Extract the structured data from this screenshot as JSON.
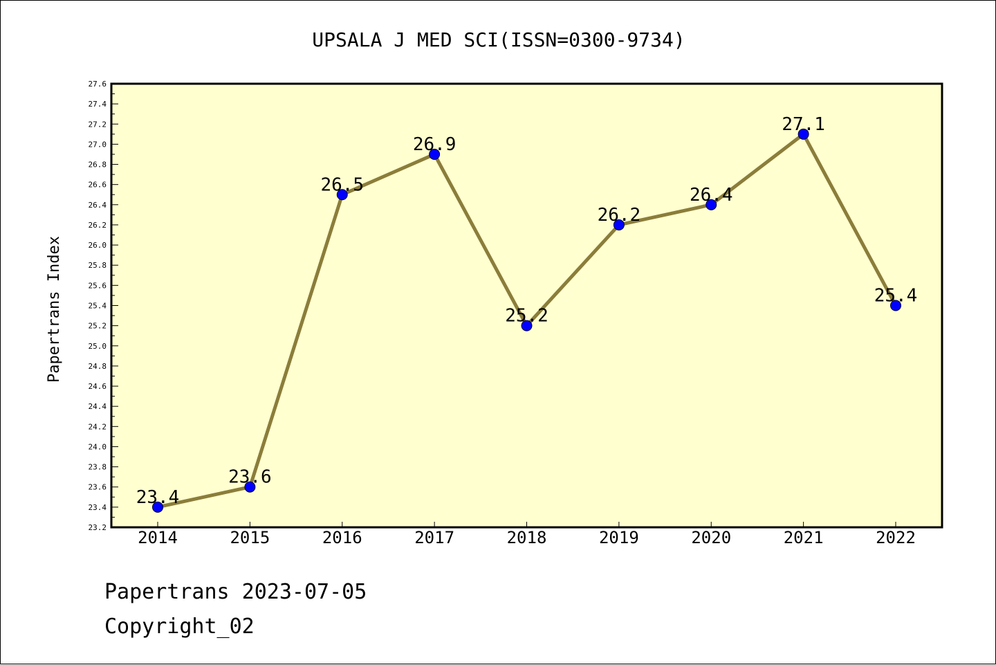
{
  "chart_data": {
    "type": "line",
    "title": "UPSALA J MED SCI(ISSN=0300-9734)",
    "xlabel": "",
    "ylabel": "Papertrans Index",
    "categories": [
      "2014",
      "2015",
      "2016",
      "2017",
      "2018",
      "2019",
      "2020",
      "2021",
      "2022"
    ],
    "values": [
      23.4,
      23.6,
      26.5,
      26.9,
      25.2,
      26.2,
      26.4,
      27.1,
      25.4
    ],
    "data_labels": [
      "23.4",
      "23.6",
      "26.5",
      "26.9",
      "25.2",
      "26.2",
      "26.4",
      "27.1",
      "25.4"
    ],
    "ylim": [
      23.2,
      27.6
    ],
    "y_ticks": [
      "23.2",
      "23.4",
      "23.6",
      "23.8",
      "24.0",
      "24.2",
      "24.4",
      "24.6",
      "24.8",
      "25.0",
      "25.2",
      "25.4",
      "25.6",
      "25.8",
      "26.0",
      "26.2",
      "26.4",
      "26.6",
      "26.8",
      "27.0",
      "27.2",
      "27.4",
      "27.6"
    ],
    "grid": false,
    "colors": {
      "plot_background": "#ffffd0",
      "line": "#8b7d3a",
      "marker": "#0000ff"
    }
  },
  "footer": {
    "line1": "Papertrans 2023-07-05",
    "line2": "Copyright_02"
  }
}
